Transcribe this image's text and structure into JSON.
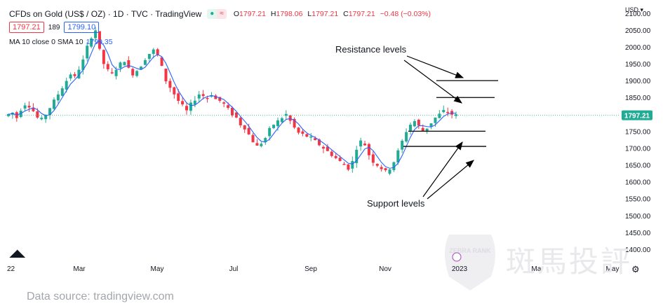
{
  "header": {
    "title": "CFDs on Gold (US$ / OZ) · 1D · TVC · TradingView",
    "ohlc": [
      {
        "label": "O",
        "value": "1797.21"
      },
      {
        "label": "H",
        "value": "1798.06"
      },
      {
        "label": "L",
        "value": "1797.21"
      },
      {
        "label": "C",
        "value": "1797.21"
      }
    ],
    "change": "−0.48 (−0.03%)"
  },
  "quote": {
    "sell": "1797.21",
    "spread": "189",
    "buy": "1799.10"
  },
  "indicator": {
    "label": "MA 10 close 0 SMA 10",
    "value": "1799.35"
  },
  "currency": "USD ▾",
  "last_price_tag": "1797.21",
  "source": "Data source: tradingview.com",
  "watermark": {
    "badge": "ZEBRA RANK",
    "cjk": "斑馬投評"
  },
  "icons": {
    "logo": "tradingview-logo-icon",
    "settings": "gear-icon",
    "event": "dividend-event-icon"
  },
  "colors": {
    "up": "#22ab94",
    "down": "#f23645",
    "ma": "#2962ff",
    "line": "#000000"
  },
  "chart_data": {
    "type": "candlestick",
    "y_ticks": [
      1400,
      1450,
      1500,
      1550,
      1600,
      1650,
      1700,
      1750,
      1800,
      1850,
      1900,
      1950,
      2000,
      2050,
      2100
    ],
    "y_tick_labels": [
      "1400.00",
      "1450.00",
      "1500.00",
      "1550.00",
      "1600.00",
      "1650.00",
      "1700.00",
      "1750.00",
      "1800.00",
      "1850.00",
      "1900.00",
      "1950.00",
      "2000.00",
      "2050.00",
      "2100.00"
    ],
    "ylim": [
      1375,
      2110
    ],
    "x_tick_labels": [
      "22",
      "Mar",
      "May",
      "Jul",
      "Sep",
      "Nov",
      "2023",
      "Mar",
      "May"
    ],
    "close_trend": [
      1800,
      1805,
      1790,
      1815,
      1830,
      1825,
      1810,
      1790,
      1785,
      1800,
      1820,
      1840,
      1860,
      1880,
      1900,
      1920,
      1910,
      1935,
      1960,
      2000,
      2030,
      2050,
      1990,
      1950,
      1930,
      1920,
      1935,
      1950,
      1960,
      1935,
      1920,
      1930,
      1945,
      1965,
      1980,
      1990,
      1975,
      1940,
      1900,
      1880,
      1860,
      1840,
      1825,
      1810,
      1830,
      1845,
      1860,
      1855,
      1850,
      1860,
      1845,
      1840,
      1830,
      1815,
      1800,
      1790,
      1770,
      1760,
      1740,
      1720,
      1705,
      1715,
      1730,
      1755,
      1770,
      1780,
      1790,
      1800,
      1780,
      1760,
      1745,
      1740,
      1735,
      1730,
      1720,
      1710,
      1700,
      1690,
      1680,
      1670,
      1660,
      1650,
      1640,
      1660,
      1700,
      1720,
      1710,
      1680,
      1660,
      1650,
      1640,
      1630,
      1640,
      1660,
      1690,
      1720,
      1750,
      1770,
      1780,
      1765,
      1750,
      1760,
      1775,
      1790,
      1800,
      1810,
      1805,
      1800,
      1797.21
    ],
    "ma_value": 1799.35,
    "last_price": 1797.21,
    "annotations": {
      "resistance_label": "Resistance levels",
      "support_label": "Support levels",
      "resistance_levels": [
        1900,
        1850
      ],
      "support_levels": [
        1750,
        1705
      ]
    }
  }
}
